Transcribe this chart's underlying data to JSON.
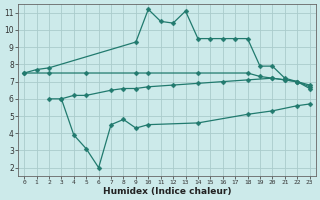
{
  "background_color": "#cceaea",
  "grid_color": "#aacccc",
  "line_color": "#217a6e",
  "xlabel": "Humidex (Indice chaleur)",
  "xlim": [
    -0.5,
    23.5
  ],
  "ylim": [
    1.5,
    11.5
  ],
  "xticks": [
    0,
    1,
    2,
    3,
    4,
    5,
    6,
    7,
    8,
    9,
    10,
    11,
    12,
    13,
    14,
    15,
    16,
    17,
    18,
    19,
    20,
    21,
    22,
    23
  ],
  "yticks": [
    2,
    3,
    4,
    5,
    6,
    7,
    8,
    9,
    10,
    11
  ],
  "line1_x": [
    0,
    1,
    2,
    9,
    10,
    11,
    12,
    13,
    14,
    15,
    16,
    17,
    18,
    19,
    20,
    21,
    22,
    23
  ],
  "line1_y": [
    7.5,
    7.7,
    7.8,
    9.3,
    11.2,
    10.5,
    10.4,
    11.1,
    9.5,
    9.5,
    9.5,
    9.5,
    9.5,
    7.9,
    7.9,
    7.2,
    7.0,
    6.6
  ],
  "line2_x": [
    0,
    2,
    5,
    9,
    10,
    14,
    18,
    19,
    20,
    21,
    22,
    23
  ],
  "line2_y": [
    7.5,
    7.5,
    7.5,
    7.5,
    7.5,
    7.5,
    7.5,
    7.3,
    7.2,
    7.1,
    7.0,
    6.7
  ],
  "line3_x": [
    2,
    3,
    4,
    5,
    7,
    8,
    9,
    10,
    12,
    14,
    16,
    18,
    20,
    21,
    22,
    23
  ],
  "line3_y": [
    6.0,
    6.0,
    6.2,
    6.2,
    6.5,
    6.6,
    6.6,
    6.7,
    6.8,
    6.9,
    7.0,
    7.1,
    7.2,
    7.1,
    7.0,
    6.8
  ],
  "line4_x": [
    3,
    4,
    5,
    6,
    7,
    8,
    9,
    10,
    14,
    18,
    20,
    22,
    23
  ],
  "line4_y": [
    6.0,
    3.9,
    3.1,
    2.0,
    4.5,
    4.8,
    4.3,
    4.5,
    4.6,
    5.1,
    5.3,
    5.6,
    5.7
  ]
}
